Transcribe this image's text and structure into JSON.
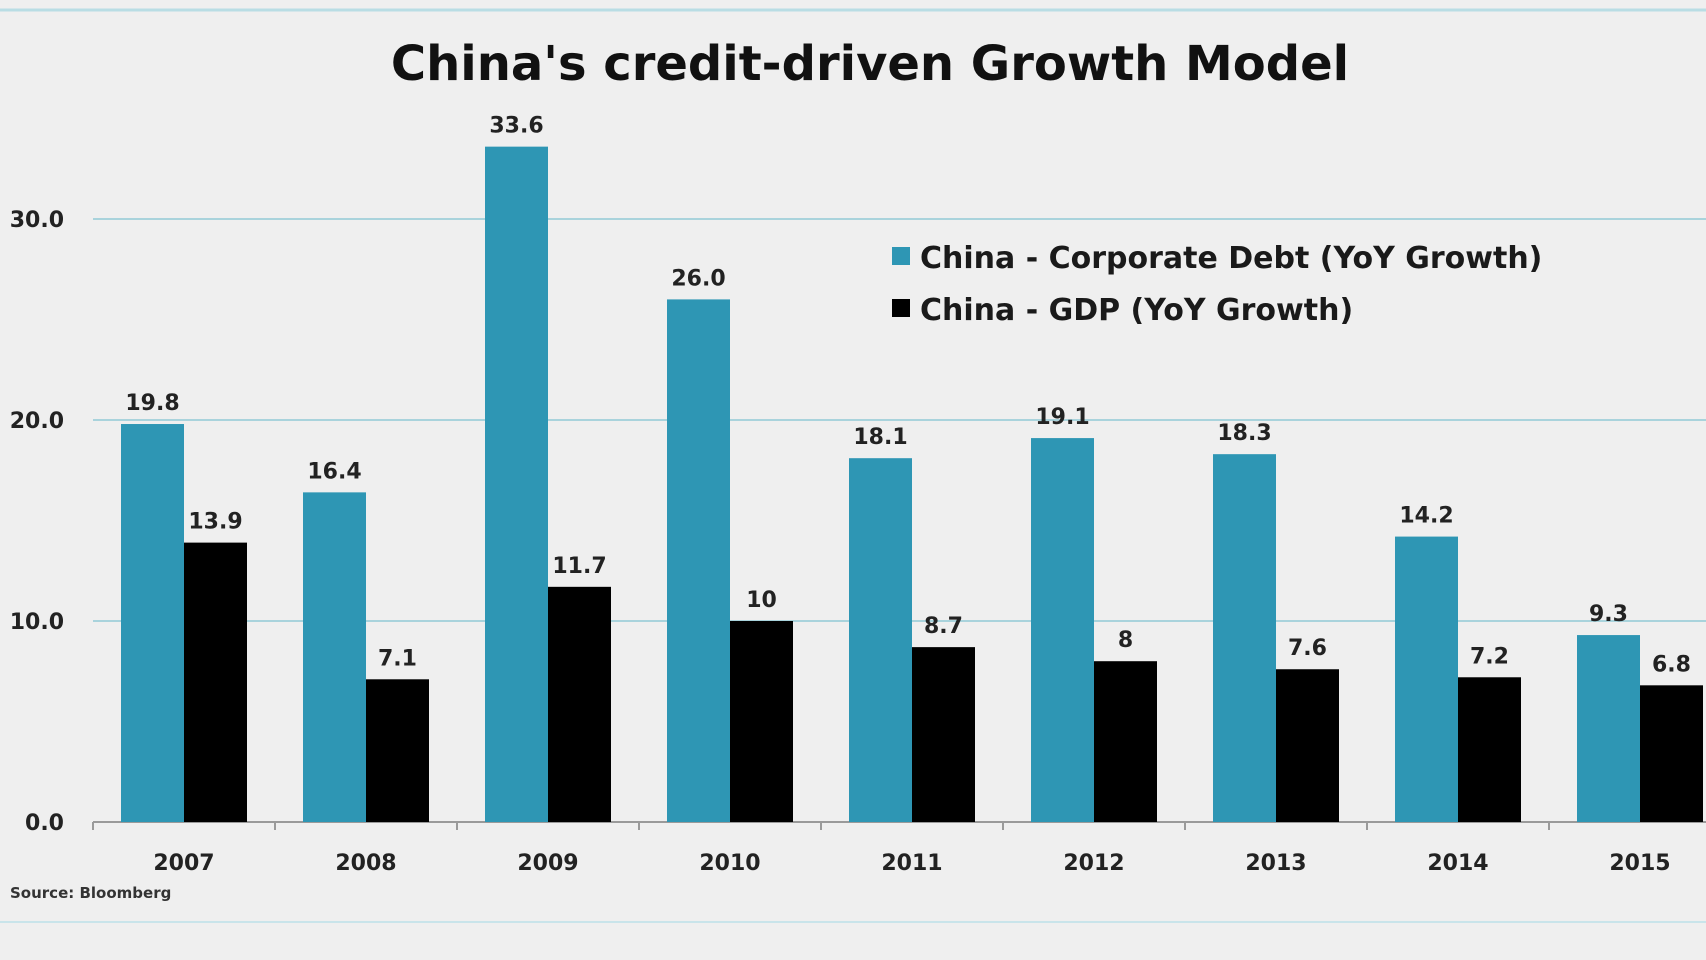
{
  "chart_data": {
    "type": "bar",
    "title": "China's credit-driven Growth Model",
    "categories": [
      "2007",
      "2008",
      "2009",
      "2010",
      "2011",
      "2012",
      "2013",
      "2014",
      "2015"
    ],
    "series": [
      {
        "name": "China - Corporate Debt (YoY Growth)",
        "color": "#2e96b4",
        "values": [
          19.8,
          16.4,
          33.6,
          26.0,
          18.1,
          19.1,
          18.3,
          14.2,
          9.3
        ],
        "labels": [
          "19.8",
          "16.4",
          "33.6",
          "26.0",
          "18.1",
          "19.1",
          "18.3",
          "14.2",
          "9.3"
        ]
      },
      {
        "name": "China - GDP (YoY Growth)",
        "color": "#000000",
        "values": [
          13.9,
          7.1,
          11.7,
          10,
          8.7,
          8,
          7.6,
          7.2,
          6.8
        ],
        "labels": [
          "13.9",
          "7.1",
          "11.7",
          "10",
          "8.7",
          "8",
          "7.6",
          "7.2",
          "6.8"
        ]
      }
    ],
    "yticks": [
      "0.0",
      "10.0",
      "20.0",
      "30.0"
    ],
    "ylim": [
      0,
      36
    ],
    "grid": true,
    "gridline_color": "#a9d3dc",
    "xlabel": "",
    "ylabel": "",
    "legend_position": "top-right",
    "source": "Source: Bloomberg"
  }
}
